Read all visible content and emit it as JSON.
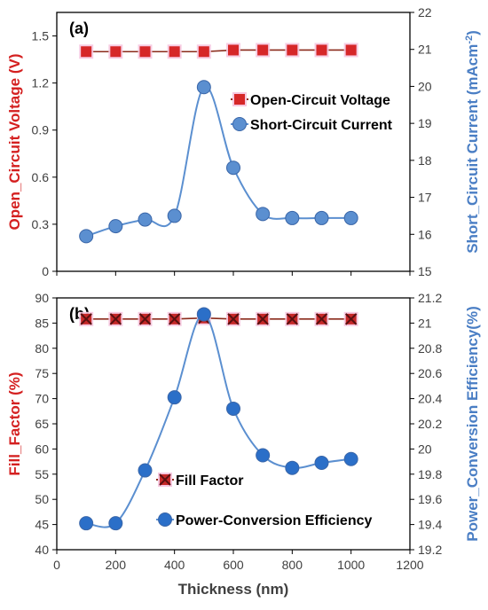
{
  "chart_data": [
    {
      "panel_label": "(a)",
      "type": "line",
      "x": [
        100,
        200,
        300,
        400,
        500,
        600,
        700,
        800,
        900,
        1000
      ],
      "xlim": [
        0,
        1200
      ],
      "y_left": {
        "label": "Open_Circuit Voltage (V)",
        "ticks": [
          "0",
          "0.3",
          "0.6",
          "0.9",
          "1.2",
          "1.5"
        ],
        "ylim": [
          0,
          1.65
        ]
      },
      "y_right": {
        "label": "Short_Circuit Current (mAcm",
        "label_sup": "-2",
        "label_end": ")",
        "ticks": [
          "15",
          "16",
          "17",
          "18",
          "19",
          "20",
          "21",
          "22"
        ],
        "ylim": [
          15,
          22
        ]
      },
      "series": [
        {
          "name": "Open-Circuit Voltage",
          "axis": "left",
          "marker": "square",
          "color": "#d62728",
          "values": [
            1.4,
            1.4,
            1.4,
            1.4,
            1.4,
            1.41,
            1.41,
            1.41,
            1.41,
            1.41
          ]
        },
        {
          "name": "Short-Circuit Current",
          "axis": "right",
          "marker": "circle",
          "color": "#5b8fd0",
          "values": [
            15.95,
            16.22,
            16.4,
            16.5,
            19.98,
            17.8,
            16.55,
            16.44,
            16.44,
            16.44
          ]
        }
      ],
      "grid": false,
      "legend": "top-right"
    },
    {
      "panel_label": "(b)",
      "type": "line",
      "x": [
        100,
        200,
        300,
        400,
        500,
        600,
        700,
        800,
        900,
        1000
      ],
      "xlim": [
        0,
        1200
      ],
      "xlabel": "Thickness (nm)",
      "xticks": [
        "0",
        "200",
        "400",
        "600",
        "800",
        "1000",
        "1200"
      ],
      "y_left": {
        "label": "Fill_Factor (%)",
        "ticks": [
          "40",
          "45",
          "50",
          "55",
          "60",
          "65",
          "70",
          "75",
          "80",
          "85",
          "90"
        ],
        "ylim": [
          40,
          90
        ]
      },
      "y_right": {
        "label": "Power_Conversion Efficiency(%)",
        "ticks": [
          "19.2",
          "19.4",
          "19.6",
          "19.8",
          "20",
          "20.2",
          "20.4",
          "20.6",
          "20.8",
          "21",
          "21.2"
        ],
        "ylim": [
          19.2,
          21.2
        ]
      },
      "series": [
        {
          "name": "Fill Factor",
          "axis": "left",
          "marker": "x-square",
          "color": "#c62828",
          "values": [
            85.8,
            85.8,
            85.8,
            85.8,
            86.0,
            85.8,
            85.8,
            85.8,
            85.8,
            85.8
          ]
        },
        {
          "name": "Power-Conversion Efficiency",
          "axis": "right",
          "marker": "circle",
          "color": "#2b6fc8",
          "values": [
            19.41,
            19.41,
            19.83,
            20.41,
            21.07,
            20.32,
            19.95,
            19.85,
            19.89,
            19.92
          ]
        }
      ],
      "grid": false,
      "legend": "bottom-center"
    }
  ]
}
